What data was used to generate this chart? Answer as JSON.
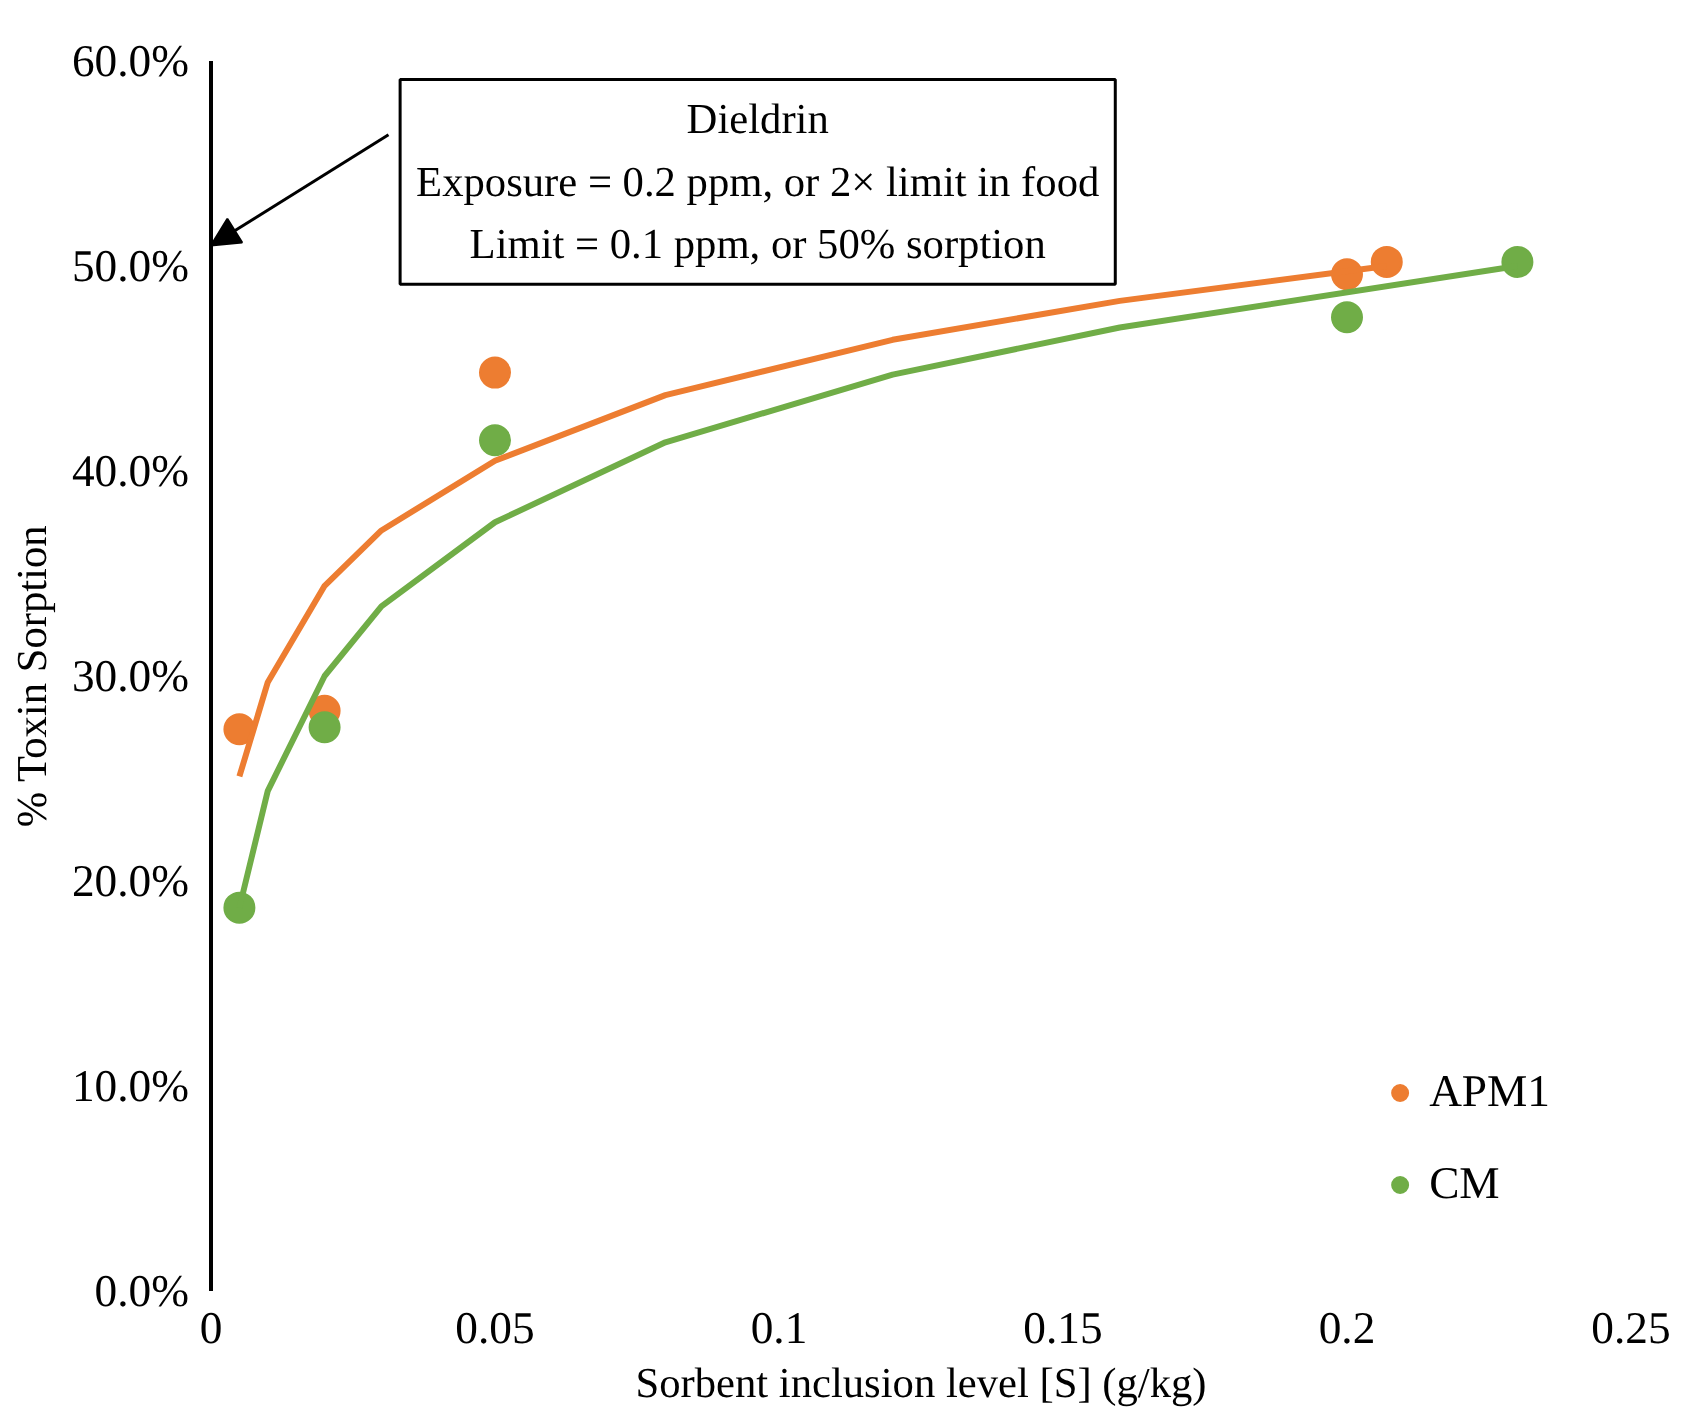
{
  "chart_data": {
    "type": "scatter",
    "xlabel": "Sorbent inclusion level [S] (g/kg)",
    "ylabel": "% Toxin Sorption",
    "xlim": [
      0,
      0.25
    ],
    "xticks": [
      0,
      0.05,
      0.1,
      0.15,
      0.2,
      0.25
    ],
    "ylim": [
      0,
      0.6
    ],
    "yticks": [
      {
        "value": 0,
        "label": "0.0%"
      },
      {
        "value": 0.1,
        "label": "10.0%"
      },
      {
        "value": 0.2,
        "label": "20.0%"
      },
      {
        "value": 0.3,
        "label": "30.0%"
      },
      {
        "value": 0.4,
        "label": "40.0%"
      },
      {
        "value": 0.5,
        "label": "50.0%"
      },
      {
        "value": 0.6,
        "label": "60.0%"
      }
    ],
    "grid": false,
    "legend": "bottom right",
    "marker": "circle",
    "annotations": [
      "Dieldrin\nExposure = 0.2 ppm, or 2× limit in food\nLimit = 0.1 ppm, or 50% sorption"
    ],
    "series": [
      {
        "name": "APM1",
        "color": "#ed7d31",
        "x": [
          0.005,
          0.02,
          0.05,
          0.2,
          0.207
        ],
        "values": [
          0.274,
          0.283,
          0.448,
          0.496,
          0.502
        ]
      },
      {
        "name": "CM",
        "color": "#70ad47",
        "x": [
          0.005,
          0.02,
          0.05,
          0.2,
          0.23
        ],
        "values": [
          0.187,
          0.275,
          0.415,
          0.475,
          0.502
        ]
      },
      {
        "type": "line",
        "marker": "none",
        "color": "#ed7d31",
        "x": [
          0.005,
          0.01,
          0.02,
          0.03,
          0.05,
          0.08,
          0.12,
          0.16,
          0.207
        ],
        "values": [
          0.251,
          0.297,
          0.344,
          0.371,
          0.405,
          0.437,
          0.464,
          0.483,
          0.5
        ]
      },
      {
        "type": "line",
        "marker": "none",
        "color": "#70ad47",
        "x": [
          0.005,
          0.01,
          0.02,
          0.03,
          0.05,
          0.08,
          0.12,
          0.16,
          0.23
        ],
        "values": [
          0.187,
          0.244,
          0.3,
          0.334,
          0.375,
          0.414,
          0.447,
          0.47,
          0.5
        ]
      }
    ]
  }
}
